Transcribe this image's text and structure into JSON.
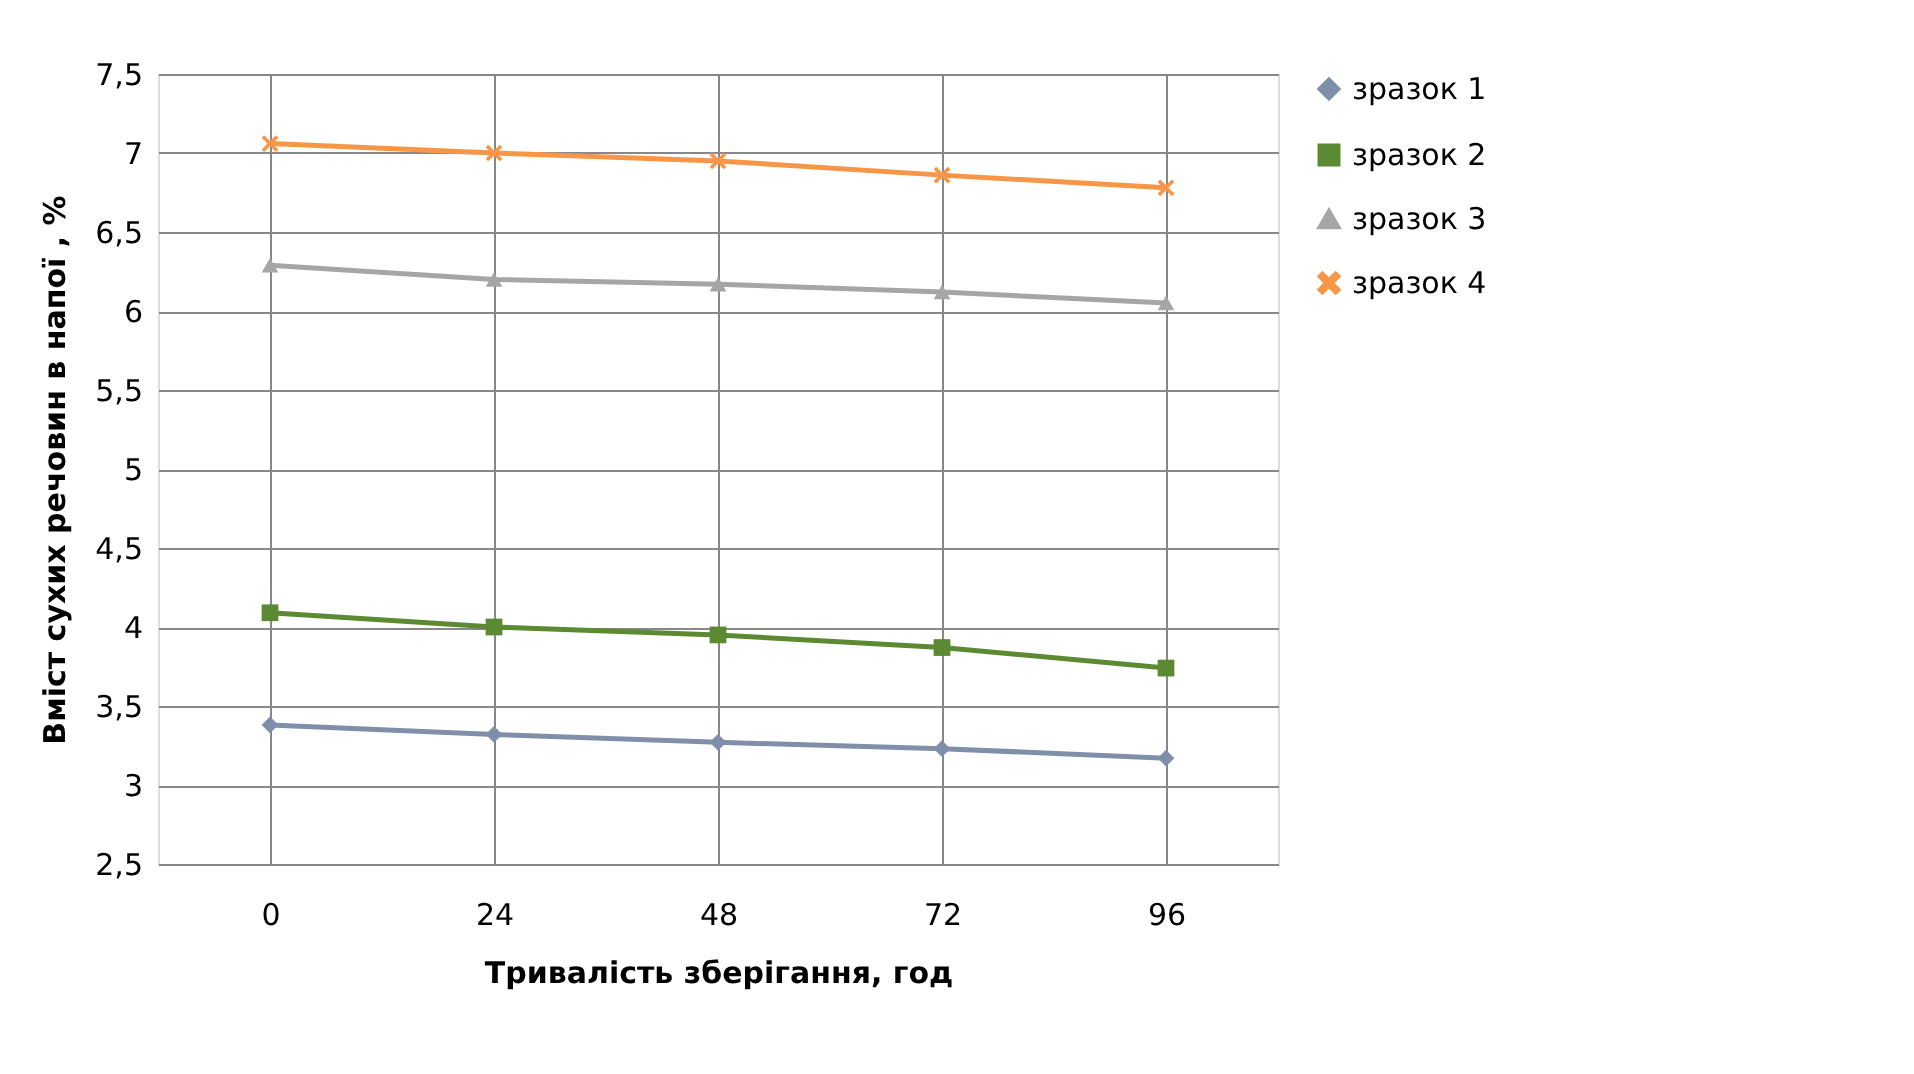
{
  "chart_data": {
    "type": "line",
    "xlabel": "Тривалість зберігання, год",
    "ylabel": "Вміст сухих речовин в напої , %",
    "categories": [
      "0",
      "24",
      "48",
      "72",
      "96"
    ],
    "series": [
      {
        "name": "зразок 1",
        "color": "#7f8faa",
        "marker": "diamond",
        "values": [
          3.38,
          3.32,
          3.27,
          3.23,
          3.17
        ]
      },
      {
        "name": "зразок 2",
        "color": "#5b8a32",
        "marker": "square",
        "values": [
          4.09,
          4.0,
          3.95,
          3.87,
          3.74
        ]
      },
      {
        "name": "зразок 3",
        "color": "#a6a6a6",
        "marker": "triangle",
        "values": [
          6.29,
          6.2,
          6.17,
          6.12,
          6.05
        ]
      },
      {
        "name": "зразок 4",
        "color": "#f79646",
        "marker": "cross",
        "values": [
          7.06,
          7.0,
          6.95,
          6.86,
          6.78
        ]
      }
    ],
    "ylim": [
      2.5,
      7.5
    ],
    "yticks": [
      {
        "value": 2.5,
        "label": "2,5"
      },
      3,
      {
        "value": 3.5,
        "label": "3,5"
      },
      4,
      {
        "value": 4.5,
        "label": "4,5"
      },
      5,
      {
        "value": 5.5,
        "label": "5,5"
      },
      6,
      {
        "value": 6.5,
        "label": "6,5"
      },
      7,
      {
        "value": 7.5,
        "label": "7,5"
      }
    ],
    "grid": true,
    "legend": "right",
    "line_style": "solid"
  }
}
